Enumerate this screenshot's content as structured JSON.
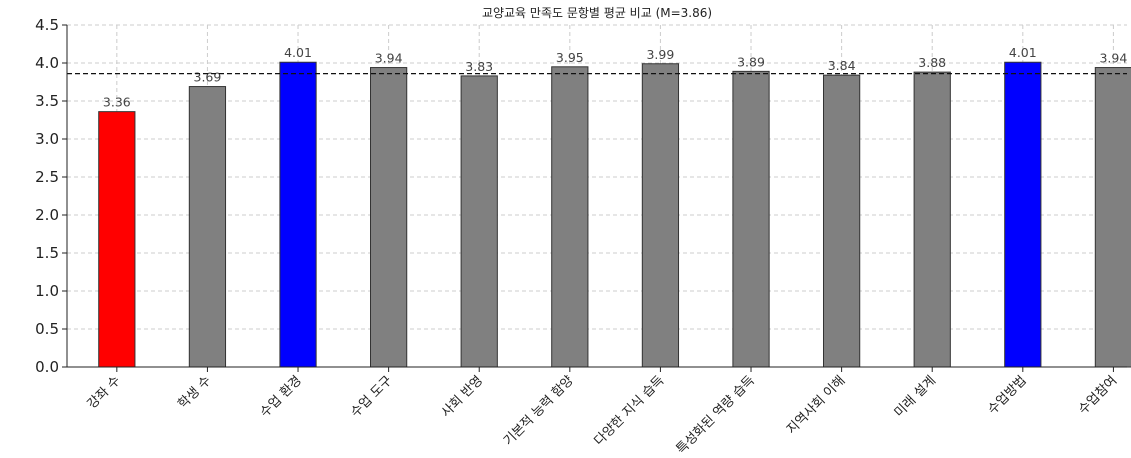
{
  "chart_data": {
    "type": "bar",
    "title": "교양교육 만족도 문항별 평균 비교 (M=3.86)",
    "xlabel": "",
    "ylabel": "",
    "ylim": [
      0,
      4.5
    ],
    "yticks": [
      "0.0",
      "0.5",
      "1.0",
      "1.5",
      "2.0",
      "2.5",
      "3.0",
      "3.5",
      "4.0",
      "4.5"
    ],
    "grid": true,
    "mean_line": 3.86,
    "categories": [
      "강좌 수",
      "학생 수",
      "수업 환경",
      "수업 도구",
      "사회 반영",
      "기본적 능력 함양",
      "다양한 지식 습득",
      "특성화된 역량 습득",
      "지역사회 이해",
      "미래 설계",
      "수업방법",
      "수업참여"
    ],
    "values": [
      3.36,
      3.69,
      4.01,
      3.94,
      3.83,
      3.95,
      3.99,
      3.89,
      3.84,
      3.88,
      4.01,
      3.94
    ],
    "value_labels": [
      "3.36",
      "3.69",
      "4.01",
      "3.94",
      "3.83",
      "3.95",
      "3.99",
      "3.89",
      "3.84",
      "3.88",
      "4.01",
      "3.94"
    ],
    "bar_colors": [
      "#ff0000",
      "#808080",
      "#0000ff",
      "#808080",
      "#808080",
      "#808080",
      "#808080",
      "#808080",
      "#808080",
      "#808080",
      "#0000ff",
      "#808080"
    ]
  }
}
